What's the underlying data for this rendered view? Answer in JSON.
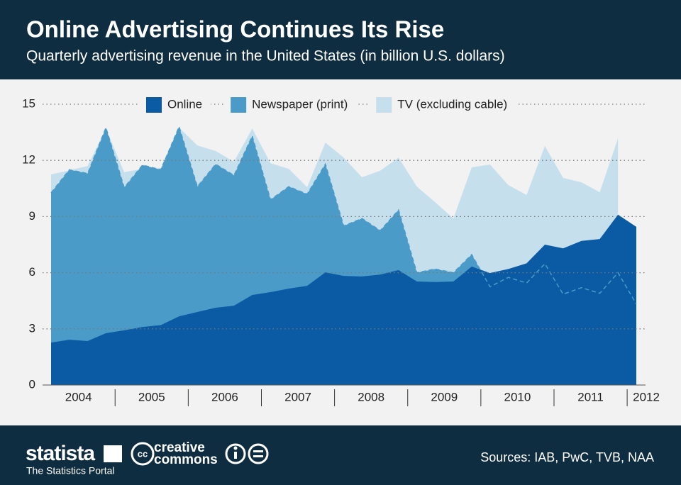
{
  "header": {
    "title": "Online Advertising Continues Its Rise",
    "subtitle": "Quarterly advertising revenue in the United States (in billion U.S. dollars)"
  },
  "chart_data": {
    "type": "area",
    "x_labels": [
      "2004",
      "2005",
      "2006",
      "2007",
      "2008",
      "2009",
      "2010",
      "2011",
      "2012"
    ],
    "points_per_label": 4,
    "ylim": [
      0,
      15
    ],
    "yticks": [
      0,
      3,
      6,
      9,
      12,
      15
    ],
    "grid": true,
    "legend": "top",
    "series": [
      {
        "name": "TV (excluding cable)",
        "color": "#c6dfed",
        "values": [
          11.25,
          11.47,
          11.7,
          13.7,
          11.37,
          11.55,
          11.6,
          13.75,
          12.8,
          12.5,
          11.93,
          13.7,
          11.85,
          11.55,
          10.57,
          12.95,
          12.15,
          11.1,
          11.45,
          12.15,
          10.6,
          9.77,
          8.9,
          11.63,
          11.78,
          10.68,
          10.15,
          12.77,
          11.06,
          10.83,
          10.3,
          13.18,
          null
        ]
      },
      {
        "name": "Newspaper (print)",
        "color": "#4b9bc9",
        "values": [
          10.27,
          11.5,
          11.3,
          13.75,
          10.55,
          11.75,
          11.5,
          13.8,
          10.6,
          11.8,
          11.2,
          13.3,
          9.9,
          10.6,
          10.2,
          11.8,
          8.5,
          8.9,
          8.25,
          9.35,
          6.0,
          6.2,
          6.0,
          6.97,
          5.25,
          5.75,
          5.45,
          6.48,
          4.85,
          5.2,
          4.9,
          6.0,
          4.33
        ]
      },
      {
        "name": "Online",
        "color": "#0b5aa4",
        "values": [
          2.27,
          2.42,
          2.35,
          2.77,
          2.92,
          3.1,
          3.2,
          3.67,
          3.9,
          4.13,
          4.24,
          4.81,
          4.96,
          5.15,
          5.3,
          6.02,
          5.83,
          5.8,
          5.9,
          6.14,
          5.53,
          5.5,
          5.53,
          6.33,
          5.98,
          6.2,
          6.5,
          7.5,
          7.3,
          7.7,
          7.8,
          9.1,
          8.45
        ]
      }
    ]
  },
  "footer": {
    "brand": "statista",
    "tagline": "The Statistics Portal",
    "cc_top": "creative",
    "cc_bottom": "commons",
    "sources": "Sources: IAB, PwC, TVB, NAA"
  }
}
